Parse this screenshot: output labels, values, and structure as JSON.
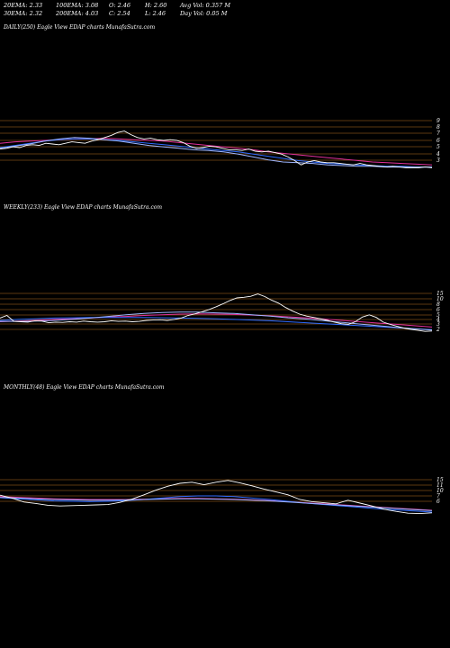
{
  "header": {
    "row1": {
      "ema20": "20EMA: 2.33",
      "ema100": "100EMA: 3.08",
      "open": "O: 2.46",
      "high": "H: 2.60",
      "avg_vol": "Avg Vol: 0.357 M"
    },
    "row2": {
      "ema30": "30EMA: 2.32",
      "ema200": "200EMA: 4.03",
      "close": "C: 2.54",
      "low": "L: 2.46",
      "day_vol": "Day Vol: 0.05 M"
    }
  },
  "colors": {
    "background": "#000000",
    "price": "#ffffff",
    "grid": "#b8731f",
    "ema_blue": "#2f6bff",
    "ema_pink": "#e0309a",
    "ema_light": "#9fb6ff"
  },
  "chart_data": [
    {
      "type": "line",
      "title": "DAILY(250) Eagle   View  EDAP charts MunafaSutra.com",
      "y_ticks": [
        "9",
        "8",
        "7",
        "6",
        "5",
        "4",
        "3"
      ],
      "price": [
        4.8,
        4.9,
        5.1,
        5.0,
        5.3,
        5.4,
        5.3,
        5.6,
        5.5,
        5.4,
        5.6,
        5.8,
        5.7,
        5.6,
        5.9,
        6.1,
        6.4,
        6.7,
        7.1,
        7.3,
        6.8,
        6.4,
        6.2,
        6.3,
        6.1,
        6.0,
        6.1,
        6.0,
        5.7,
        5.2,
        4.9,
        5.0,
        5.2,
        5.1,
        4.9,
        4.7,
        4.7,
        4.6,
        4.8,
        4.5,
        4.4,
        4.5,
        4.3,
        4.1,
        3.7,
        3.2,
        2.6,
        3.0,
        3.2,
        3.0,
        2.9,
        2.9,
        2.8,
        2.7,
        2.6,
        2.8,
        2.6,
        2.5,
        2.4,
        2.3,
        2.4,
        2.3,
        2.2,
        2.2,
        2.2,
        2.3,
        2.2
      ],
      "series": [
        {
          "values": [
            5.6,
            5.8,
            5.9,
            6.0,
            6.1,
            6.2,
            6.2,
            6.3,
            6.2,
            6.1,
            6.0,
            5.9,
            5.7,
            5.5,
            5.3,
            5.1,
            4.9,
            4.7,
            4.4,
            4.2,
            4.0,
            3.8,
            3.6,
            3.4,
            3.2,
            3.0,
            2.9,
            2.8,
            2.7,
            2.6
          ],
          "color": "#e0309a"
        },
        {
          "values": [
            5.0,
            5.3,
            5.6,
            5.9,
            6.1,
            6.2,
            6.2,
            6.1,
            6.0,
            5.8,
            5.6,
            5.4,
            5.2,
            5.0,
            4.8,
            4.6,
            4.4,
            4.1,
            3.8,
            3.5,
            3.2,
            3.0,
            2.8,
            2.7,
            2.6,
            2.5,
            2.4,
            2.4,
            2.3,
            2.3
          ],
          "color": "#2f6bff"
        },
        {
          "values": [
            4.9,
            5.2,
            5.5,
            5.9,
            6.2,
            6.4,
            6.3,
            6.1,
            5.9,
            5.6,
            5.3,
            5.1,
            4.9,
            4.7,
            4.6,
            4.4,
            4.1,
            3.7,
            3.3,
            3.0,
            2.9,
            2.8,
            2.6,
            2.5,
            2.4,
            2.4,
            2.3,
            2.3,
            2.3,
            2.3
          ],
          "color": "#9fb6ff"
        }
      ]
    },
    {
      "type": "line",
      "title": "WEEKLY(233) Eagle   View  EDAP charts MunafaSutra.com",
      "y_ticks": [
        "15",
        "10",
        "8",
        "6",
        "5",
        "4",
        "3",
        "2"
      ],
      "price": [
        6.0,
        6.8,
        5.0,
        4.9,
        4.8,
        5.2,
        5.1,
        4.6,
        4.8,
        4.7,
        4.9,
        4.8,
        5.1,
        4.9,
        4.8,
        4.9,
        5.2,
        5.0,
        5.1,
        4.9,
        5.0,
        5.3,
        5.4,
        5.5,
        5.3,
        5.6,
        6.0,
        6.8,
        7.3,
        7.9,
        8.6,
        9.4,
        10.3,
        11.3,
        12.1,
        12.3,
        12.6,
        13.3,
        12.5,
        11.4,
        10.5,
        9.2,
        8.1,
        7.2,
        6.6,
        6.2,
        5.8,
        5.3,
        4.8,
        4.3,
        4.1,
        4.9,
        6.3,
        7.0,
        6.2,
        4.8,
        4.1,
        3.5,
        3.0,
        2.6,
        2.3,
        2.0,
        2.1
      ],
      "series": [
        {
          "values": [
            4.9,
            5.1,
            5.3,
            5.6,
            5.8,
            6.0,
            6.3,
            6.5,
            6.8,
            7.0,
            7.2,
            7.3,
            7.2,
            7.1,
            6.9,
            6.7,
            6.4,
            6.1,
            5.7,
            5.3,
            4.9,
            4.5,
            4.1,
            3.7,
            3.3
          ],
          "color": "#e0309a"
        },
        {
          "values": [
            5.3,
            5.6,
            5.8,
            6.0,
            6.1,
            6.2,
            6.2,
            6.2,
            6.2,
            6.1,
            6.0,
            5.9,
            5.8,
            5.6,
            5.4,
            5.2,
            4.9,
            4.6,
            4.3,
            4.0,
            3.7,
            3.4,
            3.1,
            2.8,
            2.5
          ],
          "color": "#2f6bff"
        },
        {
          "values": [
            5.0,
            5.0,
            5.1,
            5.3,
            5.6,
            6.0,
            6.5,
            7.0,
            7.4,
            7.7,
            7.8,
            7.8,
            7.6,
            7.4,
            7.0,
            6.6,
            6.1,
            5.7,
            5.2,
            4.7,
            4.2,
            3.7,
            3.2,
            2.8,
            2.4
          ],
          "color": "#9fb6ff"
        }
      ]
    },
    {
      "type": "line",
      "title": "MONTHLY(48) Eagle   View  EDAP charts MunafaSutra.com",
      "y_ticks": [
        "15",
        "11",
        "10",
        "7",
        "6"
      ],
      "price": [
        8.2,
        7.4,
        6.3,
        5.9,
        5.4,
        5.2,
        5.3,
        5.4,
        5.5,
        5.6,
        6.2,
        7.1,
        8.3,
        9.6,
        10.7,
        11.5,
        11.8,
        11.1,
        11.8,
        12.3,
        11.6,
        10.8,
        9.9,
        9.1,
        8.3,
        7.0,
        6.4,
        6.1,
        5.8,
        6.8,
        6.0,
        5.2,
        4.3,
        3.7,
        3.2,
        3.1,
        3.3
      ],
      "series": [
        {
          "values": [
            7.8,
            7.6,
            7.4,
            7.2,
            7.1,
            7.0,
            7.0,
            7.0,
            7.1,
            7.2,
            7.3,
            7.3,
            7.2,
            7.1,
            6.9,
            6.7,
            6.4,
            6.1,
            5.8,
            5.5,
            5.2,
            4.9,
            4.6,
            4.3,
            4.0
          ],
          "color": "#e0309a"
        },
        {
          "values": [
            7.5,
            7.2,
            6.9,
            6.6,
            6.5,
            6.4,
            6.5,
            6.7,
            7.0,
            7.4,
            7.8,
            8.0,
            8.0,
            7.8,
            7.4,
            7.0,
            6.5,
            6.0,
            5.6,
            5.2,
            4.8,
            4.4,
            4.1,
            3.8,
            3.5
          ],
          "color": "#2f6bff"
        },
        {
          "values": [
            7.6,
            7.4,
            7.2,
            7.0,
            6.9,
            6.8,
            6.8,
            6.9,
            7.0,
            7.1,
            7.2,
            7.2,
            7.1,
            7.0,
            6.8,
            6.6,
            6.3,
            6.0,
            5.7,
            5.4,
            5.1,
            4.8,
            4.5,
            4.2,
            3.9
          ],
          "color": "#9fb6ff"
        }
      ]
    }
  ]
}
